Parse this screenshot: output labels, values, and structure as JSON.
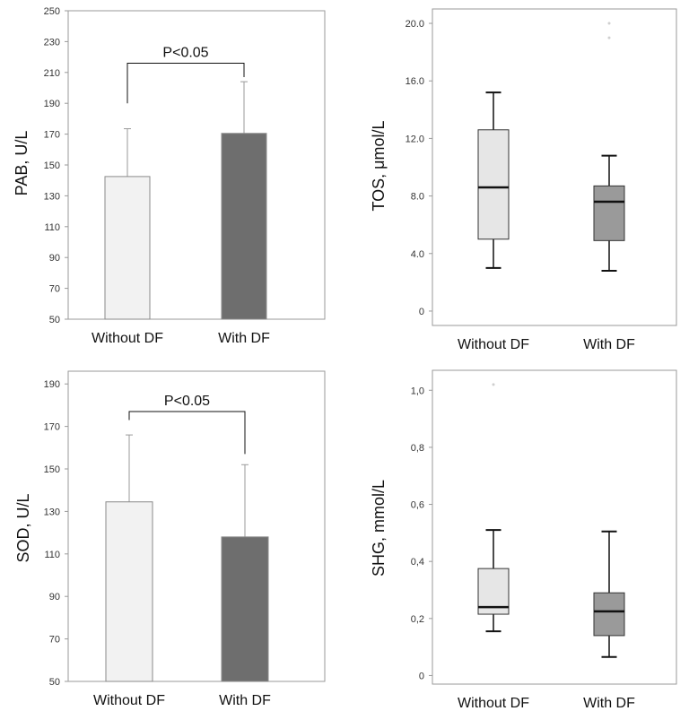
{
  "chart_data": [
    {
      "id": "pab",
      "type": "bar",
      "ylabel": "PAB, U/L",
      "ylim": [
        50,
        250
      ],
      "yticks": [
        50,
        70,
        90,
        110,
        130,
        150,
        170,
        190,
        210,
        230,
        250
      ],
      "tick_labels": [
        "50",
        "70",
        "90",
        "110",
        "130",
        "150",
        "170",
        "190",
        "210",
        "230",
        "250"
      ],
      "categories": [
        "Without DF",
        "With DF"
      ],
      "values": [
        142.5,
        170.5
      ],
      "error_upper": [
        173.5,
        204.0
      ],
      "colors": [
        "#f2f2f2",
        "#6e6e6e"
      ],
      "significance": {
        "label": "P<0.05",
        "y": 216,
        "left_end": 190,
        "right_end": 207
      }
    },
    {
      "id": "sod",
      "type": "bar",
      "ylabel": "SOD, U/L",
      "ylim": [
        50,
        196
      ],
      "yticks": [
        50,
        70,
        90,
        110,
        130,
        150,
        170,
        190
      ],
      "tick_labels": [
        "50",
        "70",
        "90",
        "110",
        "130",
        "150",
        "170",
        "190"
      ],
      "categories": [
        "Without DF",
        "With DF"
      ],
      "values": [
        134.5,
        118.0
      ],
      "error_upper": [
        166.0,
        152.0
      ],
      "colors": [
        "#f2f2f2",
        "#6e6e6e"
      ],
      "significance": {
        "label": "P<0.05",
        "y": 177,
        "left_end": 173,
        "right_end": 157
      }
    },
    {
      "id": "tos",
      "type": "box",
      "ylabel": "TOS, μmol/L",
      "ylim": [
        -1.0,
        21.0
      ],
      "yticks": [
        0,
        4,
        8,
        12,
        16,
        20
      ],
      "tick_labels": [
        "0",
        "4.0",
        "8.0",
        "12.0",
        "16.0",
        "20.0"
      ],
      "categories": [
        "Without DF",
        "With DF"
      ],
      "boxes": [
        {
          "min": 3.0,
          "q1": 5.0,
          "median": 8.6,
          "q3": 12.6,
          "max": 15.2,
          "outliers": []
        },
        {
          "min": 2.8,
          "q1": 4.9,
          "median": 7.6,
          "q3": 8.7,
          "max": 10.8,
          "outliers": [
            20.0,
            19.0
          ]
        }
      ],
      "colors": [
        "#e6e6e6",
        "#9a9a9a"
      ]
    },
    {
      "id": "shg",
      "type": "box",
      "ylabel": "SHG, mmol/L",
      "ylim": [
        -0.03,
        1.07
      ],
      "yticks": [
        0,
        0.2,
        0.4,
        0.6,
        0.8,
        1.0
      ],
      "tick_labels": [
        "0",
        "0,2",
        "0,4",
        "0,6",
        "0,8",
        "1,0"
      ],
      "categories": [
        "Without DF",
        "With DF"
      ],
      "boxes": [
        {
          "min": 0.155,
          "q1": 0.215,
          "median": 0.24,
          "q3": 0.375,
          "max": 0.51,
          "outliers": [
            1.02
          ]
        },
        {
          "min": 0.065,
          "q1": 0.14,
          "median": 0.225,
          "q3": 0.29,
          "max": 0.505,
          "outliers": []
        }
      ],
      "colors": [
        "#e6e6e6",
        "#9a9a9a"
      ]
    }
  ]
}
